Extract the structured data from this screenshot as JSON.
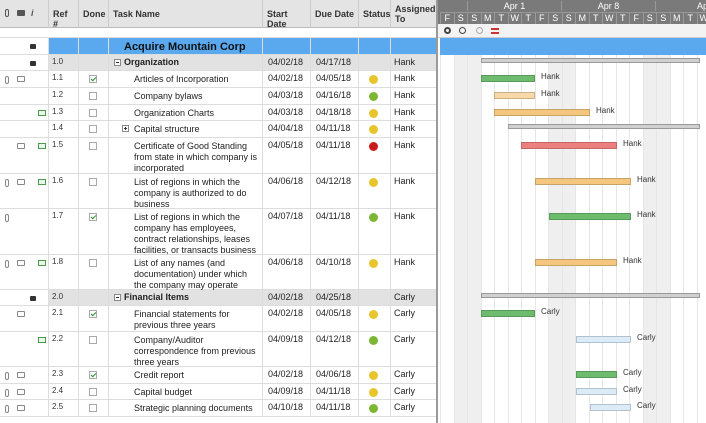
{
  "header": {
    "columns": [
      "Ref #",
      "Done",
      "Task Name",
      "Start Date",
      "Due Date",
      "Status",
      "Assigned To"
    ],
    "info": "i"
  },
  "timeline": {
    "weeks": [
      "Apr 1",
      "Apr 8",
      "Ap"
    ],
    "days": [
      "F",
      "S",
      "S",
      "M",
      "T",
      "W",
      "T",
      "F",
      "S",
      "S",
      "M",
      "T",
      "W",
      "T",
      "F",
      "S",
      "S",
      "M",
      "T",
      "W"
    ]
  },
  "rows": [
    {
      "task": "Acquire Mountain Corp",
      "kind": "title",
      "bar_color": "#5aa8ee"
    },
    {
      "ref": "1.0",
      "task": "Organization",
      "start": "04/02/18",
      "due": "04/17/18",
      "assigned": "Hank",
      "kind": "section",
      "bar_color": "#d0d0d0"
    },
    {
      "ref": "1.1",
      "done": true,
      "task": "Articles of Incorporation",
      "start": "04/02/18",
      "due": "04/05/18",
      "status": "yellow",
      "assigned": "Hank",
      "icons": [
        "attach",
        "comment"
      ],
      "bar_color": "#6dbb6d"
    },
    {
      "ref": "1.2",
      "done": false,
      "task": "Company bylaws",
      "start": "04/03/18",
      "due": "04/16/18",
      "status": "green",
      "assigned": "Hank",
      "icons": [],
      "bar_color": "#f6d9a6"
    },
    {
      "ref": "1.3",
      "done": false,
      "task": "Organization Charts",
      "start": "04/03/18",
      "due": "04/18/18",
      "status": "yellow",
      "assigned": "Hank",
      "icons": [
        "email"
      ],
      "bar_color": "#f5c77e"
    },
    {
      "ref": "1.4",
      "done": false,
      "task": "Capital structure",
      "start": "04/04/18",
      "due": "04/11/18",
      "status": "yellow",
      "assigned": "Hank",
      "icons": [],
      "collapsed": true,
      "bar_color": "#d0d0d0"
    },
    {
      "ref": "1.5",
      "done": false,
      "task": "Certificate of Good Standing from state in which company is incorporated",
      "start": "04/05/18",
      "due": "04/11/18",
      "status": "red",
      "assigned": "Hank",
      "icons": [
        "comment",
        "email"
      ],
      "bar_color": "#ee7f7f"
    },
    {
      "ref": "1.6",
      "done": false,
      "task": "List of regions in which the company is authorized to do business",
      "start": "04/06/18",
      "due": "04/12/18",
      "status": "yellow",
      "assigned": "Hank",
      "icons": [
        "attach",
        "comment",
        "email"
      ],
      "bar_color": "#f5c77e"
    },
    {
      "ref": "1.7",
      "done": true,
      "task": "List of regions in which the company has employees, contract relationships, leases facilities, or transacts business",
      "start": "04/07/18",
      "due": "04/11/18",
      "status": "green",
      "assigned": "Hank",
      "icons": [
        "attach"
      ],
      "bar_color": "#6dbb6d"
    },
    {
      "ref": "1.8",
      "done": false,
      "task": "List of any names (and documentation) under which the company may operate",
      "start": "04/06/18",
      "due": "04/10/18",
      "status": "yellow",
      "assigned": "Hank",
      "icons": [
        "attach",
        "comment",
        "email"
      ],
      "bar_color": "#f5c77e"
    },
    {
      "ref": "2.0",
      "task": "Financial Items",
      "start": "04/02/18",
      "due": "04/25/18",
      "assigned": "Carly",
      "kind": "section",
      "bar_color": "#d0d0d0"
    },
    {
      "ref": "2.1",
      "done": true,
      "task": "Financial statements for previous three years",
      "start": "04/02/18",
      "due": "04/05/18",
      "status": "yellow",
      "assigned": "Carly",
      "icons": [
        "comment"
      ],
      "bar_color": "#6dbb6d"
    },
    {
      "ref": "2.2",
      "done": false,
      "task": "Company/Auditor correspondence from previous three years",
      "start": "04/09/18",
      "due": "04/12/18",
      "status": "green",
      "assigned": "Carly",
      "icons": [
        "email"
      ],
      "bar_color": "#dcebf8"
    },
    {
      "ref": "2.3",
      "done": true,
      "task": "Credit report",
      "start": "04/02/18",
      "due": "04/06/18",
      "status": "yellow",
      "assigned": "Carly",
      "icons": [
        "attach",
        "comment"
      ],
      "bar_color": "#6dbb6d"
    },
    {
      "ref": "2.4",
      "done": false,
      "task": "Capital budget",
      "start": "04/09/18",
      "due": "04/11/18",
      "status": "yellow",
      "assigned": "Carly",
      "icons": [
        "attach",
        "comment"
      ],
      "bar_color": "#dcebf8"
    },
    {
      "ref": "2.5",
      "done": false,
      "task": "Strategic planning documents",
      "start": "04/10/18",
      "due": "04/11/18",
      "status": "green",
      "assigned": "Carly",
      "icons": [
        "attach",
        "comment"
      ],
      "bar_color": "#dcebf8"
    }
  ]
}
